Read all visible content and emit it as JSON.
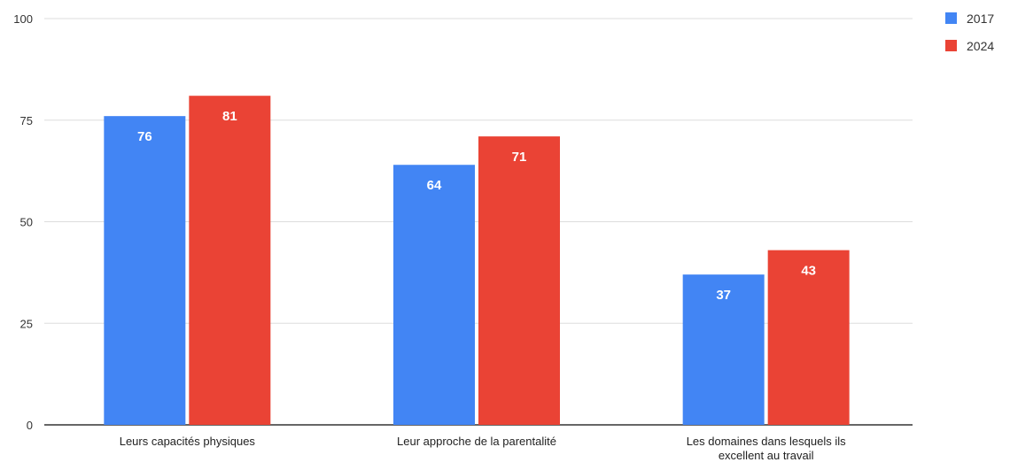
{
  "chart_data": {
    "type": "bar",
    "categories": [
      [
        "Leurs capacités physiques"
      ],
      [
        "Leur approche de la parentalité"
      ],
      [
        "Les domaines dans lesquels ils",
        "excellent au travail"
      ]
    ],
    "series": [
      {
        "name": "2017",
        "color": "#4285f4",
        "values": [
          76,
          64,
          37
        ]
      },
      {
        "name": "2024",
        "color": "#ea4335",
        "values": [
          81,
          71,
          43
        ]
      }
    ],
    "ylim": [
      0,
      100
    ],
    "yticks": [
      0,
      25,
      50,
      75,
      100
    ],
    "grid": true,
    "legend": "top-right",
    "title": "",
    "xlabel": "",
    "ylabel": ""
  }
}
